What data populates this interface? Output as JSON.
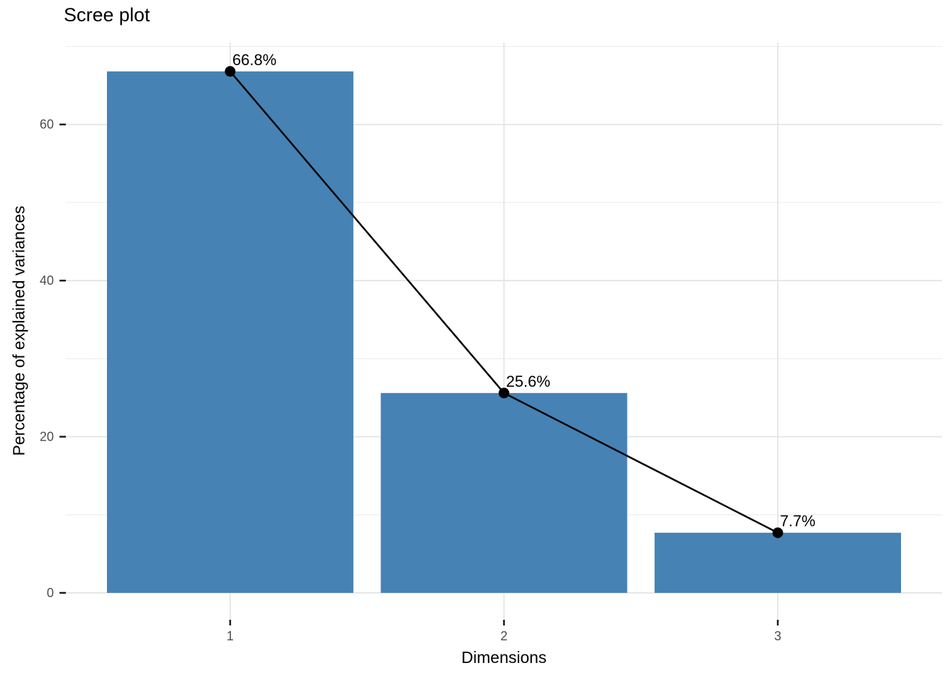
{
  "chart_data": {
    "type": "bar",
    "overlay": "line-with-points",
    "title": "Scree plot",
    "xlabel": "Dimensions",
    "ylabel": "Percentage of explained variances",
    "categories": [
      "1",
      "2",
      "3"
    ],
    "x_positions": [
      1,
      2,
      3
    ],
    "values": [
      66.8,
      25.6,
      7.7
    ],
    "point_labels": [
      "66.8%",
      "25.6%",
      "7.7%"
    ],
    "bar_width": 0.9,
    "xlim": [
      0.4,
      3.6
    ],
    "ylim": [
      -3.45,
      70.5
    ],
    "y_major_breaks": [
      0,
      20,
      40,
      60
    ],
    "y_minor_breaks": [
      10,
      30,
      50,
      70
    ],
    "grid": true,
    "legend": "none",
    "colors": {
      "bar_fill": "#4682B4",
      "line": "#000000",
      "point": "#000000",
      "point_label_text": "#000000",
      "grid_major": "#e3e3e3",
      "grid_minor": "#ececec",
      "tick_mark": "#1a1a1a",
      "tick_label": "#4d4d4d",
      "axis_title": "#000000",
      "background": "#ffffff"
    }
  }
}
